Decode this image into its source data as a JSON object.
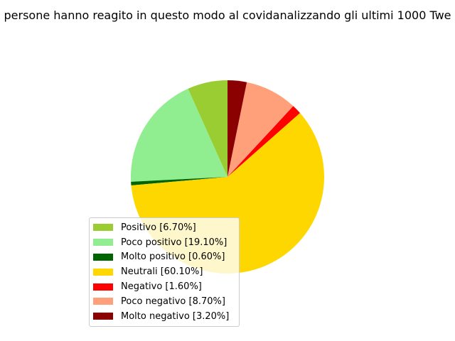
{
  "chart_data": {
    "type": "pie",
    "title": "persone hanno reagito in questo modo al covidanalizzando gli ultimi 1000 Twe",
    "legend_position": "lower-left",
    "slices": [
      {
        "label": "Positivo [6.70%]",
        "value": 6.7,
        "color": "#9acd32"
      },
      {
        "label": "Poco positivo [19.10%]",
        "value": 19.1,
        "color": "#90ee90"
      },
      {
        "label": "Molto positivo [0.60%]",
        "value": 0.6,
        "color": "#006400"
      },
      {
        "label": "Neutrali [60.10%]",
        "value": 60.1,
        "color": "#ffd700"
      },
      {
        "label": "Negativo [1.60%]",
        "value": 1.6,
        "color": "#ff0000"
      },
      {
        "label": "Poco negativo [8.70%]",
        "value": 8.7,
        "color": "#ffa07a"
      },
      {
        "label": "Molto negativo [3.20%]",
        "value": 3.2,
        "color": "#8b0000"
      }
    ]
  }
}
